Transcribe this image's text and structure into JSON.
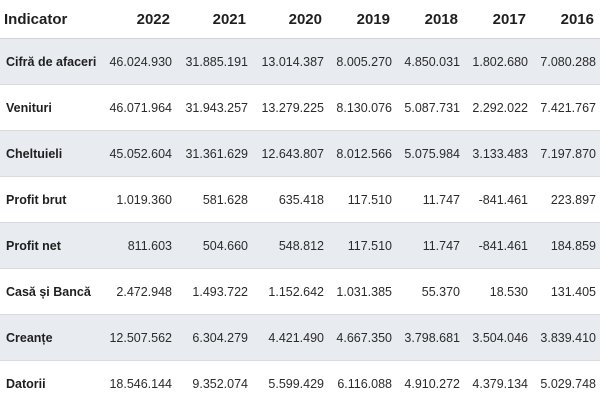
{
  "table": {
    "header_label": "Indicator",
    "years": [
      "2022",
      "2021",
      "2020",
      "2019",
      "2018",
      "2017",
      "2016"
    ],
    "rows": [
      {
        "label": "Cifră de afaceri",
        "values": [
          "46.024.930",
          "31.885.191",
          "13.014.387",
          "8.005.270",
          "4.850.031",
          "1.802.680",
          "7.080.288"
        ]
      },
      {
        "label": "Venituri",
        "values": [
          "46.071.964",
          "31.943.257",
          "13.279.225",
          "8.130.076",
          "5.087.731",
          "2.292.022",
          "7.421.767"
        ]
      },
      {
        "label": "Cheltuieli",
        "values": [
          "45.052.604",
          "31.361.629",
          "12.643.807",
          "8.012.566",
          "5.075.984",
          "3.133.483",
          "7.197.870"
        ]
      },
      {
        "label": "Profit brut",
        "values": [
          "1.019.360",
          "581.628",
          "635.418",
          "117.510",
          "11.747",
          "-841.461",
          "223.897"
        ]
      },
      {
        "label": "Profit net",
        "values": [
          "811.603",
          "504.660",
          "548.812",
          "117.510",
          "11.747",
          "-841.461",
          "184.859"
        ]
      },
      {
        "label": "Casă și Bancă",
        "values": [
          "2.472.948",
          "1.493.722",
          "1.152.642",
          "1.031.385",
          "55.370",
          "18.530",
          "131.405"
        ]
      },
      {
        "label": "Creanțe",
        "values": [
          "12.507.562",
          "6.304.279",
          "4.421.490",
          "4.667.350",
          "3.798.681",
          "3.504.046",
          "3.839.410"
        ]
      },
      {
        "label": "Datorii",
        "values": [
          "18.546.144",
          "9.352.074",
          "5.599.429",
          "6.116.088",
          "4.910.272",
          "4.379.134",
          "5.029.748"
        ]
      }
    ]
  }
}
